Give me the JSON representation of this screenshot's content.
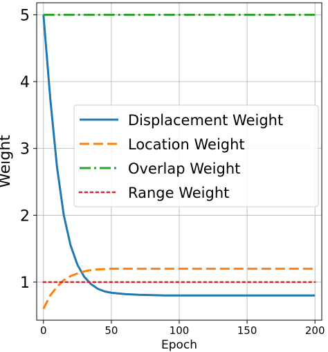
{
  "chart_data": {
    "type": "line",
    "title": "",
    "xlabel": "Epoch",
    "ylabel": "Weight",
    "xlim": [
      -5,
      205
    ],
    "ylim": [
      0.43,
      5.18
    ],
    "xticks": [
      0,
      50,
      100,
      150,
      200
    ],
    "yticks": [
      1,
      2,
      3,
      4,
      5
    ],
    "grid": true,
    "legend_position": "center-right",
    "series": [
      {
        "name": "Displacement Weight",
        "color": "#1f77b4",
        "style": "solid",
        "x": [
          0,
          5,
          10,
          15,
          20,
          25,
          30,
          35,
          40,
          45,
          50,
          60,
          70,
          80,
          90,
          100,
          120,
          150,
          200
        ],
        "y": [
          5.0,
          3.75,
          2.72,
          2.0,
          1.55,
          1.26,
          1.08,
          0.97,
          0.9,
          0.86,
          0.84,
          0.82,
          0.81,
          0.805,
          0.8,
          0.8,
          0.8,
          0.8,
          0.8
        ]
      },
      {
        "name": "Location Weight",
        "color": "#ff7f0e",
        "style": "dashed",
        "x": [
          0,
          5,
          10,
          15,
          20,
          25,
          30,
          35,
          40,
          45,
          50,
          60,
          70,
          80,
          100,
          150,
          200
        ],
        "y": [
          0.6,
          0.8,
          0.93,
          1.03,
          1.09,
          1.13,
          1.16,
          1.18,
          1.19,
          1.195,
          1.2,
          1.2,
          1.2,
          1.2,
          1.2,
          1.2,
          1.2
        ]
      },
      {
        "name": "Overlap Weight",
        "color": "#2ca02c",
        "style": "dashdot",
        "x": [
          0,
          200
        ],
        "y": [
          5.0,
          5.0
        ]
      },
      {
        "name": "Range Weight",
        "color": "#d62728",
        "style": "dotted",
        "x": [
          0,
          200
        ],
        "y": [
          1.0,
          1.0
        ]
      }
    ]
  }
}
